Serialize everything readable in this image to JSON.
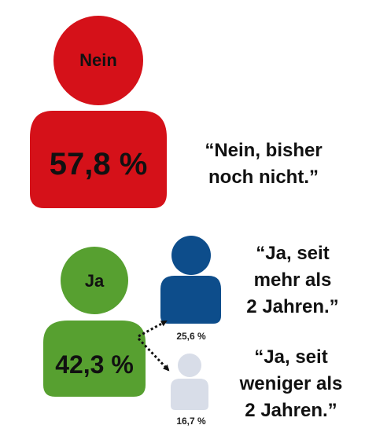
{
  "chart_data": {
    "type": "pictogram",
    "groups": [
      {
        "label": "Nein",
        "value": 57.8,
        "value_text": "57,8 %",
        "color": "#d51119",
        "quote": [
          "“Nein, bisher",
          "noch nicht.”"
        ]
      },
      {
        "label": "Ja",
        "value": 42.3,
        "value_text": "42,3 %",
        "color": "#57a030",
        "subgroups": [
          {
            "value": 25.6,
            "value_text": "25,6 %",
            "color": "#0d4d8b",
            "quote": [
              "“Ja, seit",
              "mehr als",
              "2 Jahren.”"
            ]
          },
          {
            "value": 16.7,
            "value_text": "16,7 %",
            "color": "#d8dde8",
            "quote": [
              "“Ja, seit",
              "weniger als",
              "2 Jahren.”"
            ]
          }
        ]
      }
    ]
  }
}
